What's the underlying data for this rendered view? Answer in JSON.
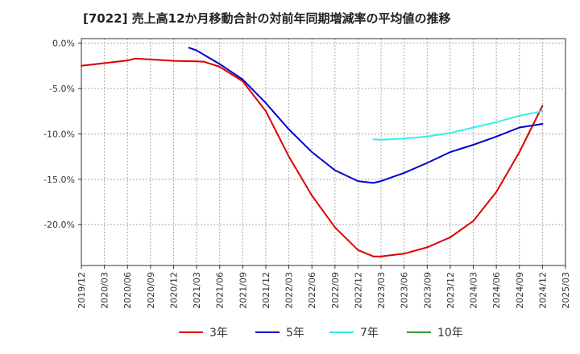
{
  "title": "[7022]  売上高12か月移動合計の対前年同期増減率の平均値の推移",
  "chart_data": {
    "type": "line",
    "title": "[7022]  売上高12か月移動合計の対前年同期増減率の平均値の推移",
    "xlabel": "",
    "ylabel": "",
    "x_ticks": [
      "2019/12",
      "2020/03",
      "2020/06",
      "2020/09",
      "2020/12",
      "2021/03",
      "2021/06",
      "2021/09",
      "2021/12",
      "2022/03",
      "2022/06",
      "2022/09",
      "2022/12",
      "2023/03",
      "2023/06",
      "2023/09",
      "2023/12",
      "2024/03",
      "2024/06",
      "2024/09",
      "2024/12",
      "2025/03"
    ],
    "y_ticks": [
      0,
      -5,
      -10,
      -15,
      -20
    ],
    "y_tick_labels": [
      "0.0%",
      "-5.0%",
      "-10.0%",
      "-15.0%",
      "-20.0%"
    ],
    "ylim": [
      -24.5,
      0.5
    ],
    "grid": true,
    "legend_position": "bottom",
    "series": [
      {
        "name": "3年",
        "color": "#dd0000",
        "points": [
          [
            "2019/12",
            -2.5
          ],
          [
            "2020/03",
            -2.2
          ],
          [
            "2020/06",
            -1.9
          ],
          [
            "2020/07",
            -1.7
          ],
          [
            "2020/09",
            -1.8
          ],
          [
            "2020/12",
            -1.95
          ],
          [
            "2021/03",
            -2.0
          ],
          [
            "2021/04",
            -2.05
          ],
          [
            "2021/06",
            -2.6
          ],
          [
            "2021/09",
            -4.2
          ],
          [
            "2021/12",
            -7.5
          ],
          [
            "2022/03",
            -12.5
          ],
          [
            "2022/06",
            -16.8
          ],
          [
            "2022/09",
            -20.3
          ],
          [
            "2022/12",
            -22.8
          ],
          [
            "2023/02",
            -23.5
          ],
          [
            "2023/03",
            -23.5
          ],
          [
            "2023/06",
            -23.2
          ],
          [
            "2023/09",
            -22.5
          ],
          [
            "2023/12",
            -21.4
          ],
          [
            "2024/03",
            -19.6
          ],
          [
            "2024/06",
            -16.4
          ],
          [
            "2024/09",
            -12.0
          ],
          [
            "2024/12",
            -6.9
          ]
        ]
      },
      {
        "name": "5年",
        "color": "#0000cc",
        "points": [
          [
            "2021/02",
            -0.5
          ],
          [
            "2021/03",
            -0.8
          ],
          [
            "2021/06",
            -2.3
          ],
          [
            "2021/09",
            -4.0
          ],
          [
            "2021/12",
            -6.6
          ],
          [
            "2022/03",
            -9.5
          ],
          [
            "2022/06",
            -12.0
          ],
          [
            "2022/09",
            -14.0
          ],
          [
            "2022/12",
            -15.2
          ],
          [
            "2023/02",
            -15.4
          ],
          [
            "2023/03",
            -15.2
          ],
          [
            "2023/06",
            -14.3
          ],
          [
            "2023/09",
            -13.2
          ],
          [
            "2023/12",
            -12.0
          ],
          [
            "2024/03",
            -11.2
          ],
          [
            "2024/06",
            -10.3
          ],
          [
            "2024/09",
            -9.3
          ],
          [
            "2024/12",
            -8.9
          ]
        ]
      },
      {
        "name": "7年",
        "color": "#33eeee",
        "points": [
          [
            "2023/02",
            -10.6
          ],
          [
            "2023/03",
            -10.65
          ],
          [
            "2023/06",
            -10.5
          ],
          [
            "2023/09",
            -10.3
          ],
          [
            "2023/12",
            -9.9
          ],
          [
            "2024/03",
            -9.3
          ],
          [
            "2024/06",
            -8.7
          ],
          [
            "2024/09",
            -8.0
          ],
          [
            "2024/12",
            -7.5
          ]
        ]
      },
      {
        "name": "10年",
        "color": "#339933",
        "points": []
      }
    ]
  }
}
